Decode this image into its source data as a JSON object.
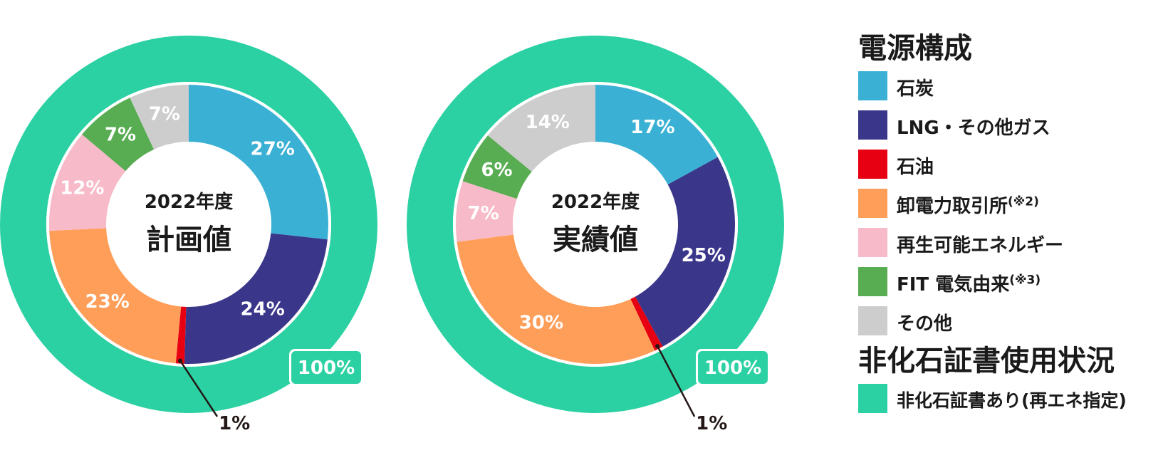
{
  "legend": {
    "title": "電源構成",
    "items": [
      {
        "label": "石炭",
        "note": "",
        "color": "#3ab1d4"
      },
      {
        "label": "LNG・その他ガス",
        "note": "",
        "color": "#3a378b"
      },
      {
        "label": "石油",
        "note": "",
        "color": "#e60012"
      },
      {
        "label": "卸電力取引所",
        "note": "(※2)",
        "color": "#ff9e59"
      },
      {
        "label": "再生可能エネルギー",
        "note": "",
        "color": "#f7bac8"
      },
      {
        "label": "FIT 電気由来",
        "note": "(※3)",
        "color": "#58ad52"
      },
      {
        "label": "その他",
        "note": "",
        "color": "#cdcdcd"
      }
    ],
    "nonfossil_title": "非化石証書使用状況",
    "nonfossil_item": {
      "label": "非化石証書あり(再エネ指定)",
      "color": "#2bd1a3"
    }
  },
  "chart_data": [
    {
      "type": "pie",
      "variant": "donut",
      "title_line1": "2022年度",
      "title_line2": "計画値",
      "categories": [
        "石炭",
        "LNG・その他ガス",
        "石油",
        "卸電力取引所",
        "再生可能エネルギー",
        "FIT 電気由来",
        "その他"
      ],
      "values": [
        27,
        24,
        1,
        23,
        12,
        7,
        7
      ],
      "labels": [
        "27%",
        "24%",
        "1%",
        "23%",
        "12%",
        "7%",
        "7%"
      ],
      "outer_ring": {
        "label": "非化石証書あり(再エネ指定)",
        "value": 100,
        "value_label": "100%"
      }
    },
    {
      "type": "pie",
      "variant": "donut",
      "title_line1": "2022年度",
      "title_line2": "実績値",
      "categories": [
        "石炭",
        "LNG・その他ガス",
        "石油",
        "卸電力取引所",
        "再生可能エネルギー",
        "FIT 電気由来",
        "その他"
      ],
      "values": [
        17,
        25,
        1,
        30,
        7,
        6,
        14
      ],
      "labels": [
        "17%",
        "25%",
        "1%",
        "30%",
        "7%",
        "6%",
        "14%"
      ],
      "outer_ring": {
        "label": "非化石証書あり(再エネ指定)",
        "value": 100,
        "value_label": "100%"
      }
    }
  ]
}
